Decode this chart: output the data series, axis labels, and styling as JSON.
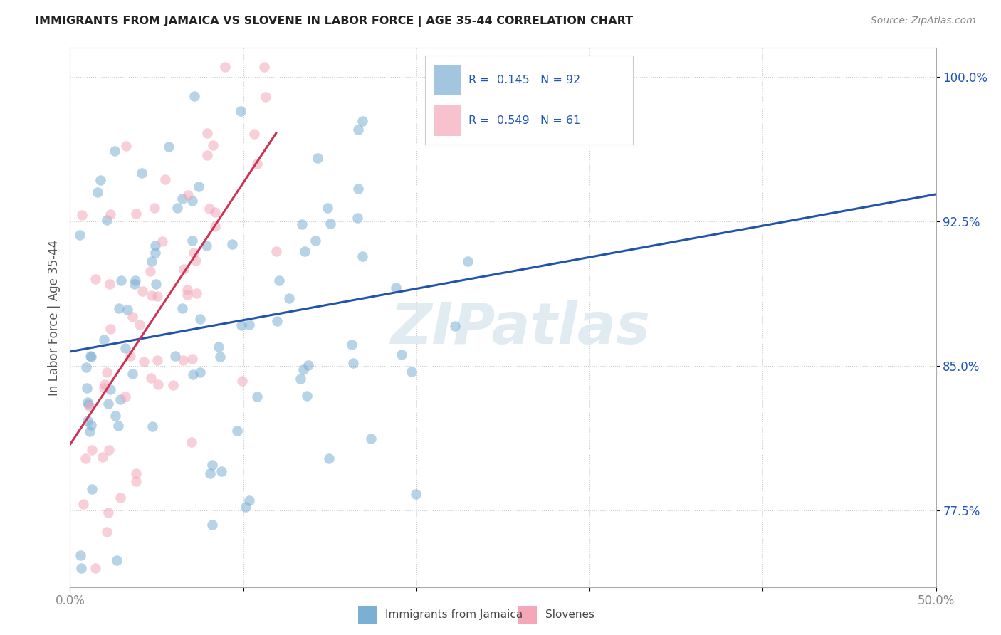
{
  "title": "IMMIGRANTS FROM JAMAICA VS SLOVENE IN LABOR FORCE | AGE 35-44 CORRELATION CHART",
  "source": "Source: ZipAtlas.com",
  "ylabel": "In Labor Force | Age 35-44",
  "xlim": [
    0.0,
    0.5
  ],
  "ylim": [
    0.735,
    1.015
  ],
  "xticks": [
    0.0,
    0.1,
    0.2,
    0.3,
    0.4,
    0.5
  ],
  "xticklabels": [
    "0.0%",
    "",
    "",
    "",
    "",
    "50.0%"
  ],
  "yticks": [
    0.775,
    0.85,
    0.925,
    1.0
  ],
  "yticklabels": [
    "77.5%",
    "85.0%",
    "92.5%",
    "100.0%"
  ],
  "jamaica_R": 0.145,
  "jamaica_N": 92,
  "slovene_R": 0.549,
  "slovene_N": 61,
  "jamaica_color": "#7bafd4",
  "slovene_color": "#f4a7b9",
  "jamaica_trend_color": "#2255aa",
  "slovene_trend_color": "#cc3355",
  "watermark": "ZIPatlas",
  "background_color": "#ffffff",
  "legend_jamaica_label": "Immigrants from Jamaica",
  "legend_slovene_label": "Slovenes",
  "legend_text_color": "#2255bb",
  "title_color": "#222222",
  "source_color": "#888888",
  "ylabel_color": "#555555",
  "grid_color": "#cccccc",
  "tick_color": "#888888"
}
